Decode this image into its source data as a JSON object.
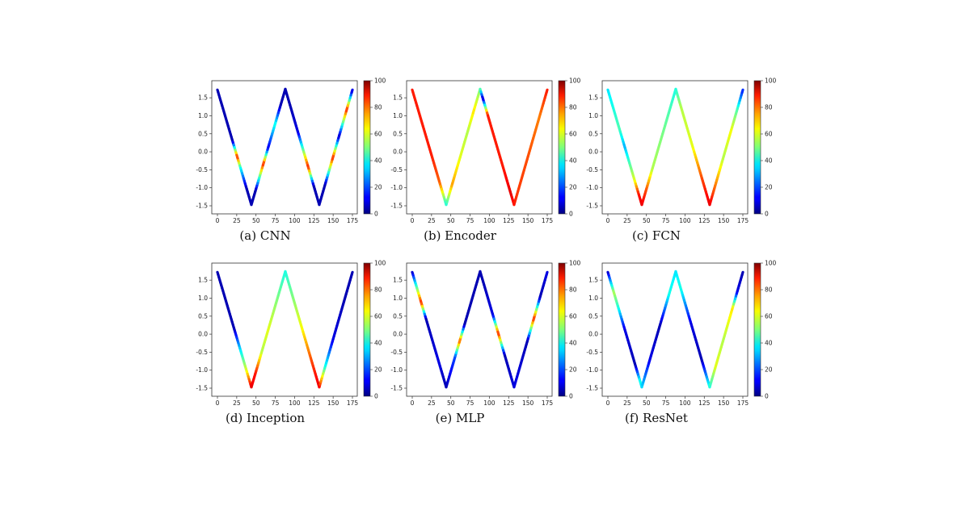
{
  "chart_data": [
    {
      "type": "line",
      "caption": "(a) CNN",
      "xlim": [
        0,
        175
      ],
      "ylim": [
        -1.5,
        1.75
      ],
      "xticks": [
        "0",
        "25",
        "50",
        "75",
        "100",
        "125",
        "150",
        "175"
      ],
      "yticks": [
        "1.5",
        "1.0",
        "0.5",
        "0.0",
        "-0.5",
        "-1.0",
        "-1.5"
      ],
      "colorbar": {
        "range": [
          0,
          100
        ],
        "ticks": [
          "100",
          "80",
          "60",
          "40",
          "20",
          "0"
        ],
        "colormap": "jet"
      },
      "x": [
        0,
        44,
        88,
        132,
        175
      ],
      "y": [
        1.72,
        -1.47,
        1.74,
        -1.47,
        1.72
      ],
      "color_values": [
        [
          0,
          5
        ],
        [
          20,
          5
        ],
        [
          26,
          85
        ],
        [
          30,
          40
        ],
        [
          38,
          5
        ],
        [
          50,
          5
        ],
        [
          60,
          85
        ],
        [
          66,
          10
        ],
        [
          75,
          40
        ],
        [
          82,
          5
        ],
        [
          95,
          5
        ],
        [
          105,
          10
        ],
        [
          118,
          85
        ],
        [
          125,
          5
        ],
        [
          140,
          5
        ],
        [
          150,
          85
        ],
        [
          158,
          5
        ],
        [
          168,
          85
        ],
        [
          175,
          5
        ]
      ]
    },
    {
      "type": "line",
      "caption": "(b) Encoder",
      "xlim": [
        0,
        175
      ],
      "ylim": [
        -1.5,
        1.75
      ],
      "xticks": [
        "0",
        "25",
        "50",
        "75",
        "100",
        "125",
        "150",
        "175"
      ],
      "yticks": [
        "1.5",
        "1.0",
        "0.5",
        "0.0",
        "-0.5",
        "-1.0",
        "-1.5"
      ],
      "colorbar": {
        "range": [
          0,
          100
        ],
        "ticks": [
          "100",
          "80",
          "60",
          "40",
          "20",
          "0"
        ],
        "colormap": "jet"
      },
      "x": [
        0,
        44,
        88,
        132,
        175
      ],
      "y": [
        1.72,
        -1.47,
        1.74,
        -1.47,
        1.72
      ],
      "color_values": [
        [
          0,
          85
        ],
        [
          25,
          85
        ],
        [
          36,
          78
        ],
        [
          44,
          40
        ],
        [
          52,
          72
        ],
        [
          62,
          60
        ],
        [
          72,
          55
        ],
        [
          80,
          65
        ],
        [
          88,
          50
        ],
        [
          92,
          5
        ],
        [
          98,
          85
        ],
        [
          118,
          85
        ],
        [
          128,
          90
        ],
        [
          136,
          82
        ],
        [
          150,
          80
        ],
        [
          165,
          75
        ],
        [
          175,
          85
        ]
      ]
    },
    {
      "type": "line",
      "caption": "(c) FCN",
      "xlim": [
        0,
        175
      ],
      "ylim": [
        -1.5,
        1.75
      ],
      "xticks": [
        "0",
        "25",
        "50",
        "75",
        "100",
        "125",
        "150",
        "175"
      ],
      "yticks": [
        "1.5",
        "1.0",
        "0.5",
        "0.0",
        "-0.5",
        "-1.0",
        "-1.5"
      ],
      "colorbar": {
        "range": [
          0,
          100
        ],
        "ticks": [
          "100",
          "80",
          "60",
          "40",
          "20",
          "0"
        ],
        "colormap": "jet"
      },
      "x": [
        0,
        44,
        88,
        132,
        175
      ],
      "y": [
        1.72,
        -1.47,
        1.74,
        -1.47,
        1.72
      ],
      "color_values": [
        [
          0,
          35
        ],
        [
          15,
          45
        ],
        [
          22,
          30
        ],
        [
          35,
          60
        ],
        [
          40,
          85
        ],
        [
          44,
          90
        ],
        [
          50,
          80
        ],
        [
          58,
          55
        ],
        [
          70,
          50
        ],
        [
          80,
          45
        ],
        [
          88,
          40
        ],
        [
          95,
          55
        ],
        [
          110,
          60
        ],
        [
          122,
          80
        ],
        [
          132,
          90
        ],
        [
          140,
          75
        ],
        [
          150,
          55
        ],
        [
          160,
          62
        ],
        [
          168,
          45
        ],
        [
          175,
          15
        ]
      ]
    },
    {
      "type": "line",
      "caption": "(d) Inception",
      "xlim": [
        0,
        175
      ],
      "ylim": [
        -1.5,
        1.75
      ],
      "xticks": [
        "0",
        "25",
        "50",
        "75",
        "100",
        "125",
        "150",
        "175"
      ],
      "yticks": [
        "1.5",
        "1.0",
        "0.5",
        "0.0",
        "-0.5",
        "-1.0",
        "-1.5"
      ],
      "colorbar": {
        "range": [
          0,
          100
        ],
        "ticks": [
          "100",
          "80",
          "60",
          "40",
          "20",
          "0"
        ],
        "colormap": "jet"
      },
      "x": [
        0,
        44,
        88,
        132,
        175
      ],
      "y": [
        1.72,
        -1.47,
        1.74,
        -1.47,
        1.72
      ],
      "color_values": [
        [
          0,
          5
        ],
        [
          22,
          5
        ],
        [
          30,
          35
        ],
        [
          38,
          60
        ],
        [
          44,
          90
        ],
        [
          50,
          85
        ],
        [
          58,
          55
        ],
        [
          66,
          60
        ],
        [
          78,
          50
        ],
        [
          88,
          40
        ],
        [
          98,
          50
        ],
        [
          110,
          62
        ],
        [
          122,
          80
        ],
        [
          132,
          90
        ],
        [
          140,
          40
        ],
        [
          150,
          10
        ],
        [
          165,
          5
        ],
        [
          175,
          5
        ]
      ]
    },
    {
      "type": "line",
      "caption": "(e) MLP",
      "xlim": [
        0,
        175
      ],
      "ylim": [
        -1.5,
        1.75
      ],
      "xticks": [
        "0",
        "25",
        "50",
        "75",
        "100",
        "125",
        "150",
        "175"
      ],
      "yticks": [
        "1.5",
        "1.0",
        "0.5",
        "0.0",
        "-0.5",
        "-1.0",
        "-1.5"
      ],
      "colorbar": {
        "range": [
          0,
          100
        ],
        "ticks": [
          "100",
          "80",
          "60",
          "40",
          "20",
          "0"
        ],
        "colormap": "jet"
      },
      "x": [
        0,
        44,
        88,
        132,
        175
      ],
      "y": [
        1.72,
        -1.47,
        1.74,
        -1.47,
        1.72
      ],
      "color_values": [
        [
          0,
          5
        ],
        [
          12,
          85
        ],
        [
          18,
          5
        ],
        [
          35,
          10
        ],
        [
          44,
          5
        ],
        [
          56,
          20
        ],
        [
          62,
          80
        ],
        [
          68,
          5
        ],
        [
          82,
          5
        ],
        [
          92,
          5
        ],
        [
          105,
          10
        ],
        [
          112,
          85
        ],
        [
          120,
          5
        ],
        [
          135,
          10
        ],
        [
          150,
          5
        ],
        [
          158,
          85
        ],
        [
          166,
          5
        ],
        [
          175,
          10
        ]
      ]
    },
    {
      "type": "line",
      "caption": "(f) ResNet",
      "xlim": [
        0,
        175
      ],
      "ylim": [
        -1.5,
        1.75
      ],
      "xticks": [
        "0",
        "25",
        "50",
        "75",
        "100",
        "125",
        "150",
        "175"
      ],
      "yticks": [
        "1.5",
        "1.0",
        "0.5",
        "0.0",
        "-0.5",
        "-1.0",
        "-1.5"
      ],
      "colorbar": {
        "range": [
          0,
          100
        ],
        "ticks": [
          "100",
          "80",
          "60",
          "40",
          "20",
          "0"
        ],
        "colormap": "jet"
      },
      "x": [
        0,
        44,
        88,
        132,
        175
      ],
      "y": [
        1.72,
        -1.47,
        1.74,
        -1.47,
        1.72
      ],
      "color_values": [
        [
          0,
          5
        ],
        [
          8,
          55
        ],
        [
          14,
          40
        ],
        [
          22,
          10
        ],
        [
          36,
          5
        ],
        [
          42,
          40
        ],
        [
          46,
          30
        ],
        [
          55,
          10
        ],
        [
          68,
          5
        ],
        [
          80,
          40
        ],
        [
          88,
          35
        ],
        [
          95,
          40
        ],
        [
          108,
          10
        ],
        [
          122,
          5
        ],
        [
          132,
          40
        ],
        [
          140,
          60
        ],
        [
          150,
          55
        ],
        [
          162,
          65
        ],
        [
          168,
          10
        ],
        [
          175,
          5
        ]
      ]
    }
  ]
}
